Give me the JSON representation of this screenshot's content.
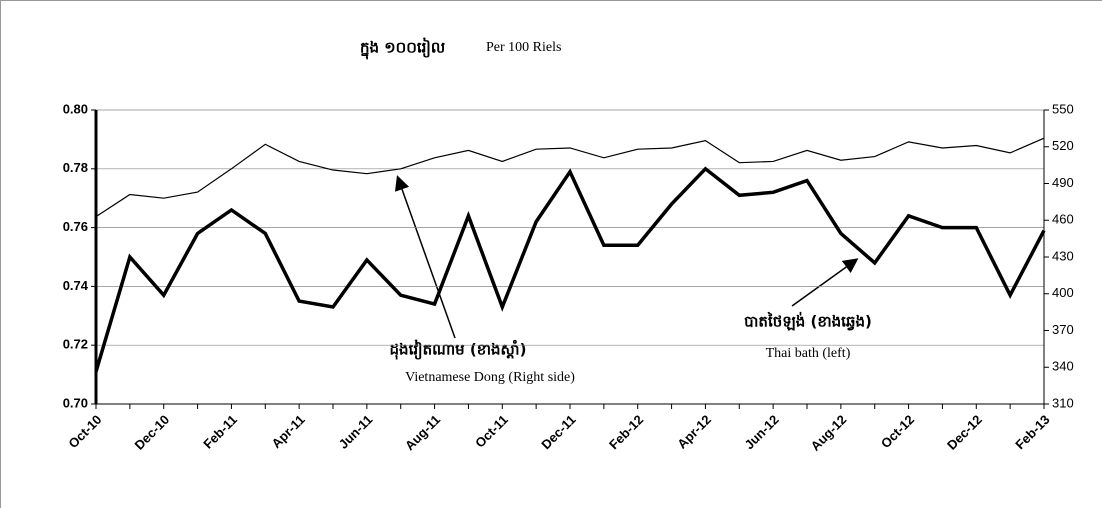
{
  "chart_data": {
    "type": "line",
    "title": "Per 100 Riels",
    "subtitle": "ក្នុង ១០០រៀល",
    "annotations": [
      "ដុងវៀតណាម (ខាងស្តាំ)",
      "បាតថៃឡង់ (ខាងឆ្វេង)"
    ],
    "categories": [
      "Oct-10",
      null,
      "Dec-10",
      null,
      "Feb-11",
      null,
      "Apr-11",
      null,
      "Jun-11",
      null,
      "Aug-11",
      null,
      "Oct-11",
      null,
      "Dec-11",
      null,
      "Feb-12",
      null,
      "Apr-12",
      null,
      "Jun-12",
      null,
      "Aug-12",
      null,
      "Oct-12",
      null,
      "Dec-12",
      null,
      "Feb-13"
    ],
    "series": [
      {
        "name": "Thai bath (left)",
        "color": "#000000",
        "width": 3.5,
        "values": [
          0.711,
          0.75,
          0.737,
          0.758,
          0.766,
          0.758,
          0.735,
          0.733,
          0.749,
          0.737,
          0.734,
          0.764,
          0.733,
          0.762,
          0.779,
          0.754,
          0.754,
          0.768,
          0.78,
          0.771,
          0.772,
          0.776,
          0.758,
          0.748,
          0.764,
          0.76,
          0.76,
          0.737,
          0.759
        ]
      },
      {
        "name": "Vietnamese Dong (Right side)",
        "color": "#000000",
        "width": 1.2,
        "axis": "y2",
        "values": [
          463,
          481,
          478,
          483,
          502,
          522,
          508,
          501,
          498,
          502,
          511,
          517,
          508,
          518,
          519,
          511,
          518,
          519,
          525,
          507,
          508,
          517,
          509,
          512,
          524,
          519,
          521,
          515,
          527
        ]
      }
    ],
    "ylim": [
      0.7,
      0.8
    ],
    "yticks": [
      {
        "value": 0.7,
        "label": "0.70"
      },
      {
        "value": 0.72,
        "label": "0.72"
      },
      {
        "value": 0.74,
        "label": "0.74"
      },
      {
        "value": 0.76,
        "label": "0.76"
      },
      {
        "value": 0.78,
        "label": "0.78"
      },
      {
        "value": 0.8,
        "label": "0.80"
      }
    ],
    "y2lim": [
      310,
      550
    ],
    "y2ticks": [
      310,
      340,
      370,
      400,
      430,
      460,
      490,
      520,
      550
    ],
    "grid": true
  }
}
